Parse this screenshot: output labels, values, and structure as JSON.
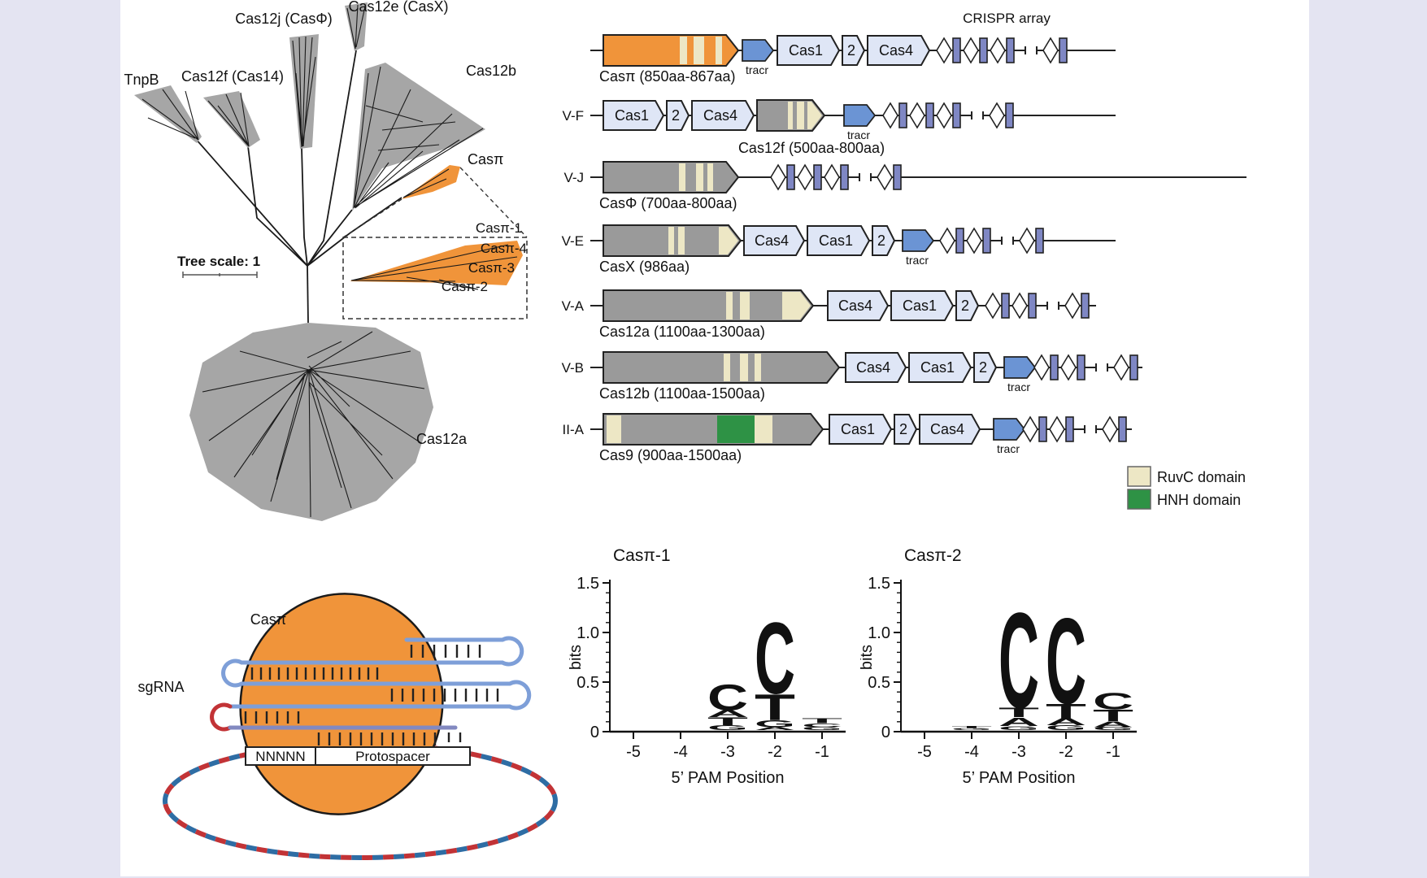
{
  "figure": {
    "background_color": "#e4e4f2",
    "panel_color": "#ffffff"
  },
  "tree": {
    "scale_label": "Tree scale: 1",
    "clade_color": "#a6a6a6",
    "highlight_color": "#f0943a",
    "clades": {
      "tnpb": "TnpB",
      "cas12f": "Cas12f (Cas14)",
      "cas12j": "Cas12j (CasΦ)",
      "cas12e": "Cas12e (CasX)",
      "cas12b": "Cas12b",
      "caspi": "Casπ",
      "cas12a": "Cas12a"
    },
    "inset_labels": [
      "Casπ-1",
      "Casπ-4",
      "Casπ-3",
      "Casπ-2"
    ]
  },
  "locus": {
    "crispr_array_label": "CRISPR array",
    "tracr_label": "tracr",
    "rows": [
      {
        "type_label": "",
        "caption": "Casπ (850aa-867aa)",
        "genes": [
          "Cas1",
          "2",
          "Cas4"
        ]
      },
      {
        "type_label": "V-F",
        "caption": "Cas12f (500aa-800aa)",
        "genes": [
          "Cas1",
          "2",
          "Cas4"
        ]
      },
      {
        "type_label": "V-J",
        "caption": "CasΦ (700aa-800aa)",
        "genes": []
      },
      {
        "type_label": "V-E",
        "caption": "CasX (986aa)",
        "genes": [
          "Cas4",
          "Cas1",
          "2"
        ]
      },
      {
        "type_label": "V-A",
        "caption": "Cas12a (1100aa-1300aa)",
        "genes": [
          "Cas4",
          "Cas1",
          "2"
        ]
      },
      {
        "type_label": "V-B",
        "caption": "Cas12b (1100aa-1500aa)",
        "genes": [
          "Cas4",
          "Cas1",
          "2"
        ]
      },
      {
        "type_label": "II-A",
        "caption": "Cas9 (900aa-1500aa)",
        "genes": [
          "Cas1",
          "2",
          "Cas4"
        ]
      }
    ],
    "legend": [
      {
        "label": "RuvC domain",
        "color": "#ede7c5"
      },
      {
        "label": "HNH domain",
        "color": "#2e9245"
      }
    ]
  },
  "schematic": {
    "protein_label": "Casπ",
    "sgrna_label": "sgRNA",
    "pam_label": "NNNNN",
    "protospacer_label": "Protospacer"
  },
  "logo_colors": {
    "A": "#1e9143",
    "C": "#2b5f9e",
    "G": "#f0a93c",
    "T": "#d93934"
  },
  "chart_data": [
    {
      "type": "sequence-logo",
      "title": "Casπ-1",
      "xlabel": "5’ PAM Position",
      "ylabel": "bits",
      "ylim": [
        0,
        1.5
      ],
      "positions": [
        -5,
        -4,
        -3,
        -2,
        -1
      ],
      "stacks": [
        [],
        [],
        [
          {
            "base": "G",
            "bits": 0.05
          },
          {
            "base": "T",
            "bits": 0.08
          },
          {
            "base": "A",
            "bits": 0.07
          },
          {
            "base": "C",
            "bits": 0.27
          }
        ],
        [
          {
            "base": "A",
            "bits": 0.03
          },
          {
            "base": "G",
            "bits": 0.07
          },
          {
            "base": "T",
            "bits": 0.27
          },
          {
            "base": "C",
            "bits": 0.75
          }
        ],
        [
          {
            "base": "G",
            "bits": 0.03
          },
          {
            "base": "C",
            "bits": 0.04
          },
          {
            "base": "T",
            "bits": 0.05
          }
        ]
      ]
    },
    {
      "type": "sequence-logo",
      "title": "Casπ-2",
      "xlabel": "5’ PAM Position",
      "ylabel": "bits",
      "ylim": [
        0,
        1.5
      ],
      "positions": [
        -5,
        -4,
        -3,
        -2,
        -1
      ],
      "stacks": [
        [],
        [
          {
            "base": "G",
            "bits": 0.02
          },
          {
            "base": "T",
            "bits": 0.02
          }
        ],
        [
          {
            "base": "G",
            "bits": 0.04
          },
          {
            "base": "A",
            "bits": 0.09
          },
          {
            "base": "T",
            "bits": 0.1
          },
          {
            "base": "C",
            "bits": 1.0
          }
        ],
        [
          {
            "base": "G",
            "bits": 0.05
          },
          {
            "base": "A",
            "bits": 0.07
          },
          {
            "base": "T",
            "bits": 0.15
          },
          {
            "base": "C",
            "bits": 0.9
          }
        ],
        [
          {
            "base": "G",
            "bits": 0.03
          },
          {
            "base": "A",
            "bits": 0.06
          },
          {
            "base": "T",
            "bits": 0.12
          },
          {
            "base": "C",
            "bits": 0.17
          }
        ]
      ]
    }
  ]
}
